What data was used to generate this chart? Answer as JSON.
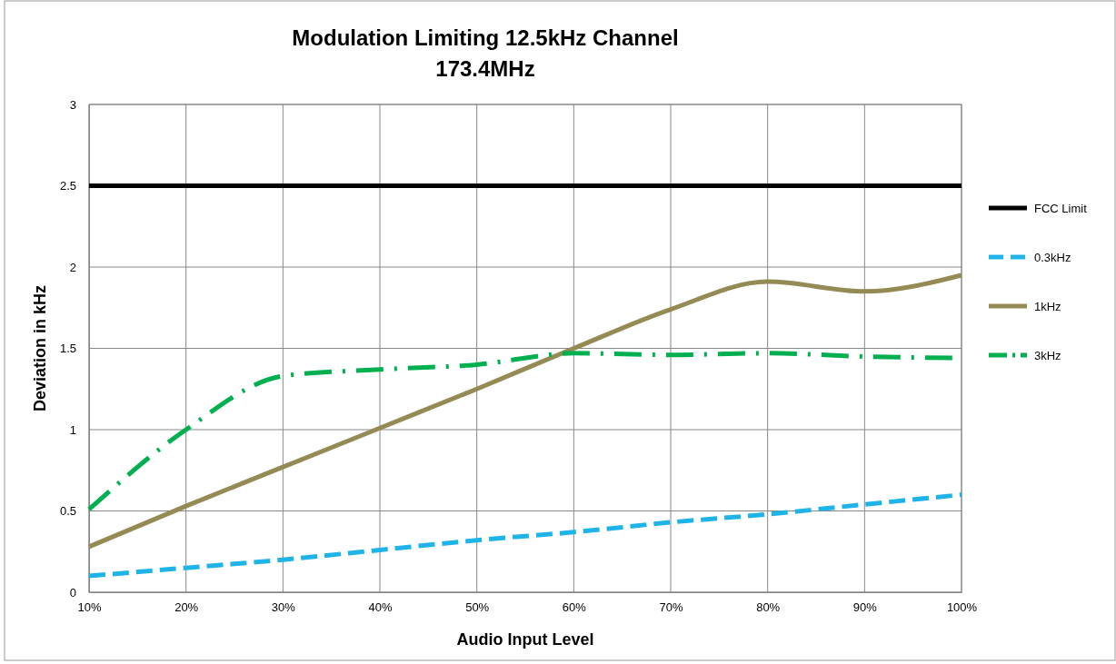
{
  "chart_data": {
    "type": "line",
    "title": "Modulation Limiting 12.5kHz Channel",
    "subtitle": "173.4MHz",
    "xlabel": "Audio  Input Level",
    "ylabel": "Deviation in kHz",
    "x": [
      10,
      20,
      30,
      40,
      50,
      60,
      70,
      80,
      90,
      100
    ],
    "xlim": [
      10,
      100
    ],
    "xticks": [
      {
        "value": 10,
        "label": "10%"
      },
      {
        "value": 20,
        "label": "20%"
      },
      {
        "value": 30,
        "label": "30%"
      },
      {
        "value": 40,
        "label": "40%"
      },
      {
        "value": 50,
        "label": "50%"
      },
      {
        "value": 60,
        "label": "60%"
      },
      {
        "value": 70,
        "label": "70%"
      },
      {
        "value": 80,
        "label": "80%"
      },
      {
        "value": 90,
        "label": "90%"
      },
      {
        "value": 100,
        "label": "100%"
      }
    ],
    "ylim": [
      0,
      3
    ],
    "yticks": [
      0,
      0.5,
      1,
      1.5,
      2,
      2.5,
      3
    ],
    "grid": true,
    "legend": "right",
    "marker": "none",
    "series": [
      {
        "name": "FCC Limit",
        "color": "#000000",
        "line_style": "solid",
        "values": [
          2.5,
          2.5,
          2.5,
          2.5,
          2.5,
          2.5,
          2.5,
          2.5,
          2.5,
          2.5
        ]
      },
      {
        "name": "0.3kHz",
        "color": "#1fb4e8",
        "line_style": "dashed",
        "values": [
          0.1,
          0.15,
          0.2,
          0.26,
          0.32,
          0.37,
          0.43,
          0.48,
          0.54,
          0.6
        ]
      },
      {
        "name": "1kHz",
        "color": "#948a54",
        "line_style": "solid",
        "values": [
          0.28,
          0.53,
          0.77,
          1.01,
          1.25,
          1.5,
          1.74,
          1.91,
          1.85,
          1.95
        ]
      },
      {
        "name": "3kHz",
        "color": "#00b050",
        "line_style": "dotted",
        "values": [
          0.51,
          1.0,
          1.33,
          1.37,
          1.4,
          1.47,
          1.46,
          1.47,
          1.45,
          1.44
        ]
      }
    ]
  }
}
